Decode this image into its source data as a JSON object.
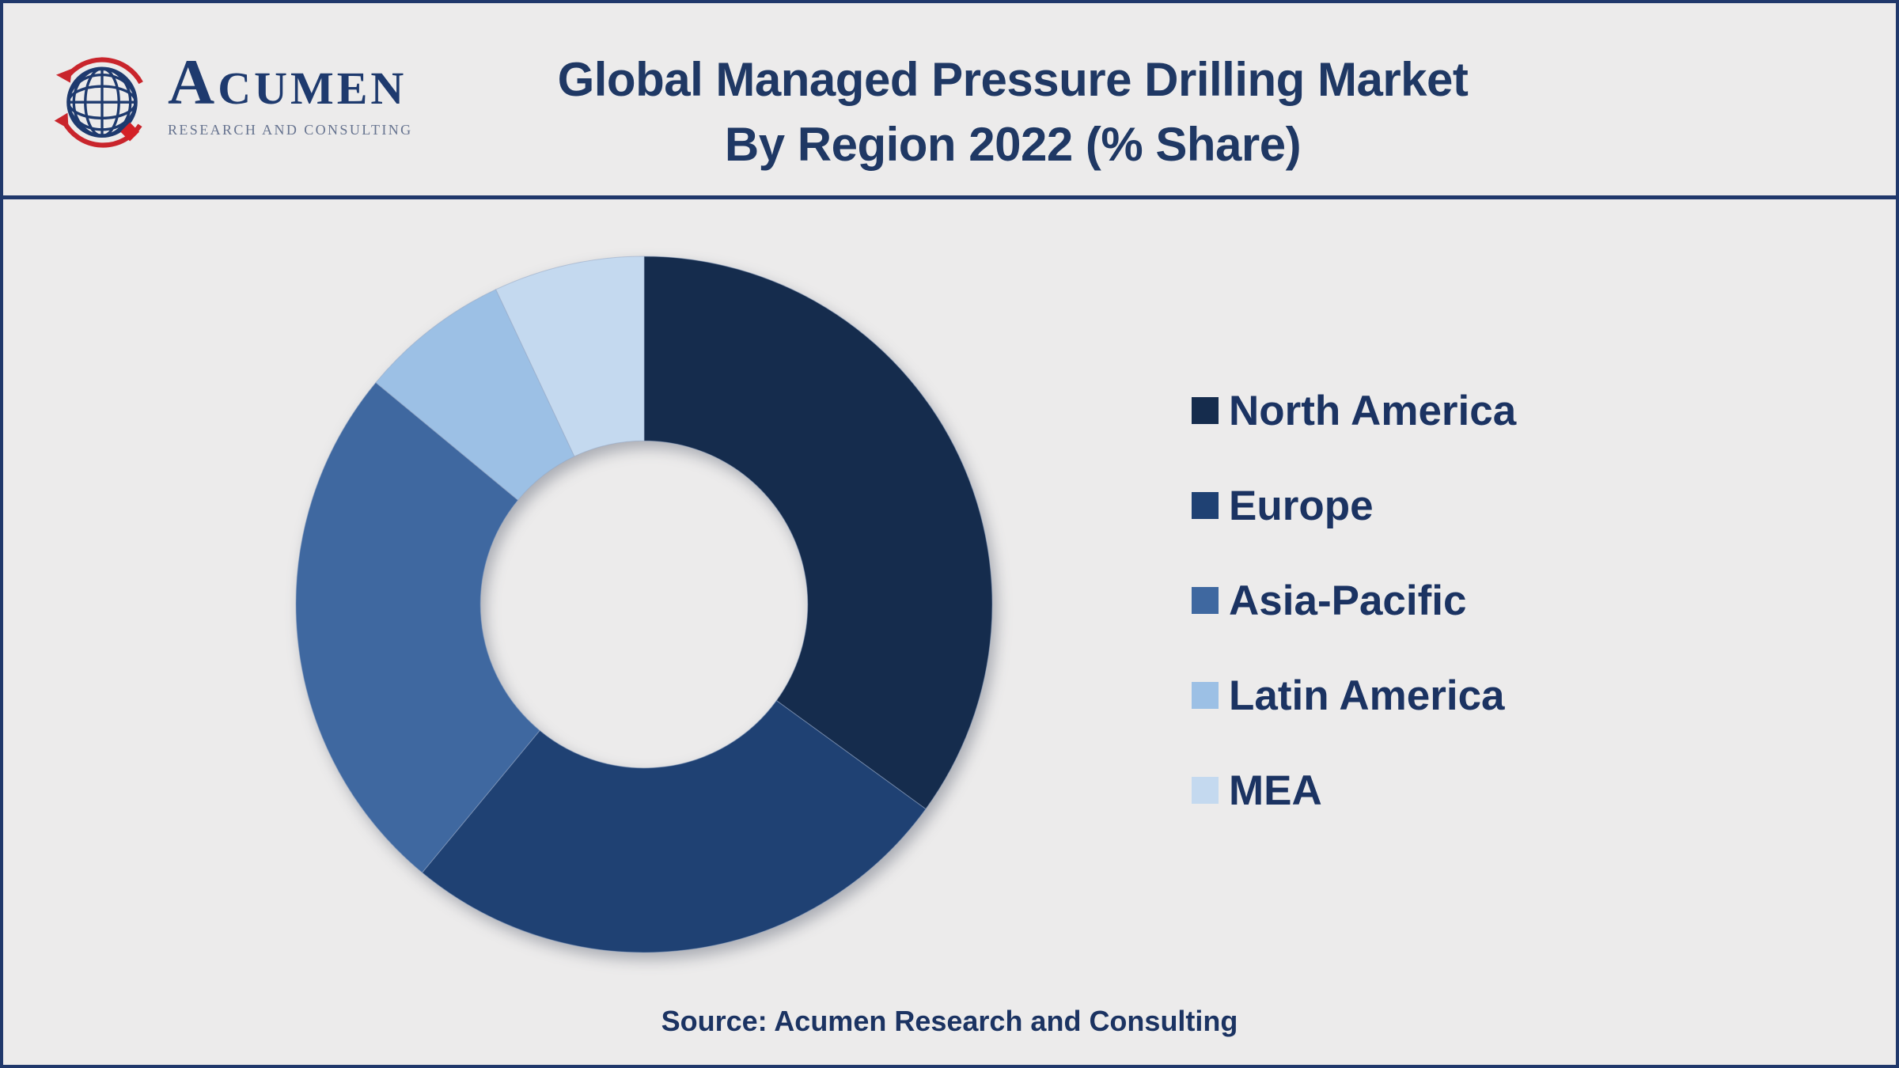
{
  "header": {
    "logo": {
      "brand": "ACUMEN",
      "tagline": "RESEARCH AND CONSULTING"
    },
    "title_line1": "Global Managed Pressure Drilling Market",
    "title_line2": "By Region 2022 (% Share)"
  },
  "chart_data": {
    "type": "pie",
    "subtype": "donut",
    "title": "Global Managed Pressure Drilling Market By Region 2022 (% Share)",
    "categories": [
      "North America",
      "Europe",
      "Asia-Pacific",
      "Latin America",
      "MEA"
    ],
    "values": [
      35,
      26,
      25,
      7,
      7
    ],
    "unit": "% share",
    "colors": [
      "#152C4D",
      "#1F4173",
      "#3F68A0",
      "#9CC0E5",
      "#C4D9EF"
    ],
    "start_angle_deg": 0,
    "direction": "clockwise",
    "inner_radius_ratio": 0.47,
    "legend_position": "right",
    "data_labels": false
  },
  "footer": {
    "source": "Source: Acumen Research and Consulting"
  },
  "colors": {
    "accent_navy": "#1F3864",
    "border": "#20386B",
    "background": "#ECEBEB",
    "logo_red": "#C9252C",
    "tagline_gray": "#66738F"
  }
}
